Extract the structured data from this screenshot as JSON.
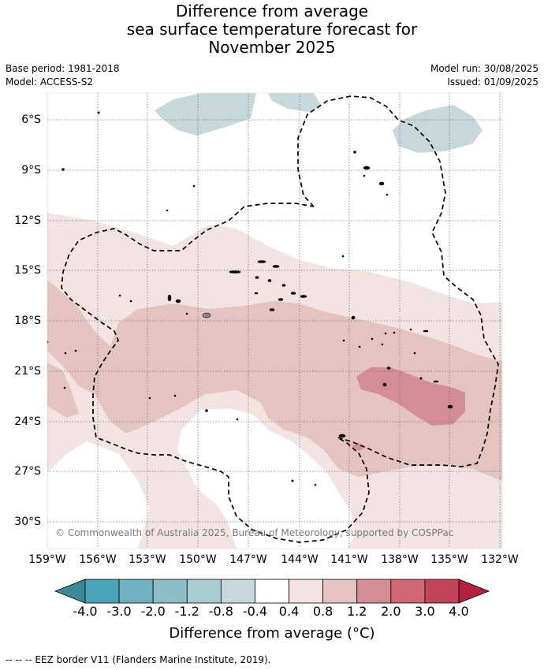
{
  "title": {
    "line1": "Difference from average",
    "line2": "sea surface temperature forecast for",
    "line3": "November 2025"
  },
  "meta": {
    "base_period": "Base period: 1981-2018",
    "model": "Model: ACCESS-S2",
    "model_run": "Model run: 30/08/2025",
    "issued": "Issued: 01/09/2025"
  },
  "axes": {
    "x_ticks": [
      "159°W",
      "156°W",
      "153°W",
      "150°W",
      "147°W",
      "144°W",
      "141°W",
      "138°W",
      "135°W",
      "132°W"
    ],
    "y_ticks": [
      "6°S",
      "9°S",
      "12°S",
      "15°S",
      "18°S",
      "21°S",
      "24°S",
      "27°S",
      "30°S"
    ],
    "grid": true
  },
  "colorbar": {
    "labels": [
      "-4.0",
      "-3.0",
      "-2.0",
      "-1.2",
      "-0.8",
      "-0.4",
      "0.4",
      "0.8",
      "1.2",
      "2.0",
      "3.0",
      "4.0"
    ],
    "colors": [
      "#3c8a96",
      "#4aa3b6",
      "#6fb1c0",
      "#8dbdc7",
      "#a9cad0",
      "#c7d8dc",
      "#ffffff",
      "#f3e3e2",
      "#e5c3c0",
      "#d48d94",
      "#cf6575",
      "#c14459",
      "#b2213e"
    ],
    "title": "Difference from average (°C)"
  },
  "copyright": "© Commonwealth of Australia 2025, Bureau of Meteorology, supported by COSPPac",
  "footnote": "--  --  -- EEZ border V11 (Flanders Marine Institute, 2019)."
}
